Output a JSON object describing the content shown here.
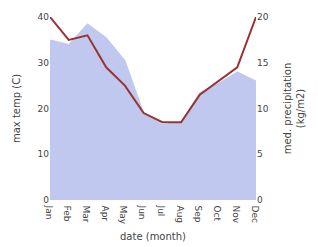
{
  "chart_data": {
    "type": "line",
    "categories": [
      "Jan",
      "Feb",
      "Mar",
      "Apr",
      "May",
      "Jun",
      "Jul",
      "Aug",
      "Sep",
      "Oct",
      "Nov",
      "Dec"
    ],
    "series": [
      {
        "type": "area",
        "color": "#c0c8f0",
        "values": [
          35.0,
          34.0,
          38.5,
          35.5,
          30.5,
          19.0,
          16.5,
          17.0,
          23.5,
          25.5,
          28.0,
          26.0
        ]
      },
      {
        "type": "line",
        "color": "#993333",
        "axis": "y2",
        "values": [
          20.0,
          17.5,
          18.0,
          14.5,
          12.5,
          9.5,
          8.5,
          8.5,
          11.5,
          13.0,
          14.5,
          20.0
        ]
      }
    ],
    "xlabel": "date (month)",
    "ylabel": "max temp (C)",
    "y2label": "med. precipitation\n(kg/m2)",
    "ylim": [
      0,
      40
    ],
    "yticks": [
      0,
      10,
      20,
      30,
      40
    ],
    "y2lim": [
      0,
      20
    ],
    "y2ticks": [
      0,
      5,
      10,
      15,
      20
    ],
    "grid": false,
    "legend": false
  }
}
